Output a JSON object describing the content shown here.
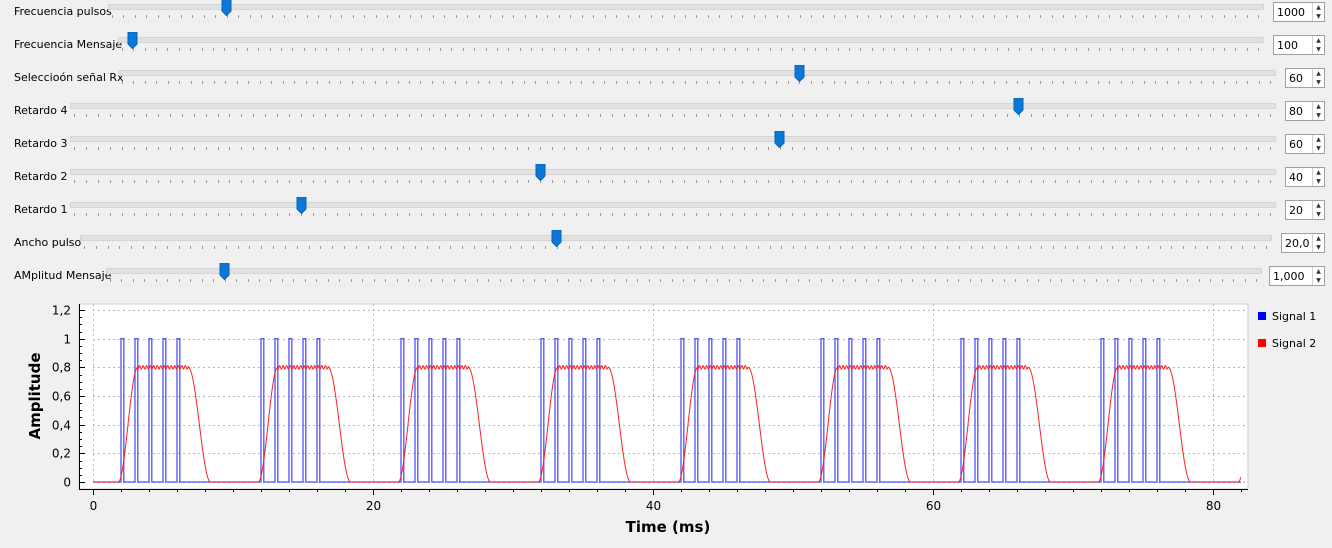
{
  "sliders": [
    {
      "label": "Frecuencia pulsos",
      "value": "1000",
      "fraction": 0.1
    },
    {
      "label": "Frecuencia Mensaje",
      "value": "100",
      "fraction": 0.009
    },
    {
      "label": "Seleccioón señal Rx",
      "value": "60",
      "fraction": 0.59
    },
    {
      "label": "Retardo 4",
      "value": "80",
      "fraction": 0.79
    },
    {
      "label": "Retardo 3",
      "value": "60",
      "fraction": 0.59
    },
    {
      "label": "Retardo 2",
      "value": "40",
      "fraction": 0.39
    },
    {
      "label": "Retardo 1",
      "value": "20",
      "fraction": 0.19
    },
    {
      "label": "Ancho pulso",
      "value": "20,0",
      "fraction": 0.4
    },
    {
      "label": "AMplitud Mensaje",
      "value": "1,000",
      "fraction": 0.1
    }
  ],
  "legend": [
    {
      "name": "Signal 1",
      "color": "#0000ff"
    },
    {
      "name": "Signal 2",
      "color": "#ff0000"
    }
  ],
  "chart_data": {
    "type": "line",
    "xlabel": "Time (ms)",
    "ylabel": "Amplitude",
    "xlim": [
      0,
      82
    ],
    "ylim": [
      0,
      1.2
    ],
    "xticks": [
      "0",
      "20",
      "40",
      "60",
      "80"
    ],
    "yticks": [
      "0",
      "0,2",
      "0,4",
      "0,6",
      "0,8",
      "1",
      "1,2"
    ],
    "grid": true,
    "legend_position": "right",
    "series": [
      {
        "name": "Signal 1",
        "color": "#5050ff",
        "description_values": {
          "period_ms": 10,
          "pulse_starts_offset_ms": [
            2,
            3,
            4,
            5,
            6
          ],
          "pulse_width_ms": 0.2,
          "high": 1,
          "low": 0,
          "periods": 8
        }
      },
      {
        "name": "Signal 2",
        "color": "#ff2020",
        "description_values": {
          "period_ms": 10,
          "rise_start_offset_ms": 1.8,
          "plateau_start_offset_ms": 3.2,
          "plateau_end_offset_ms": 6.8,
          "fall_end_offset_ms": 8.4,
          "high": 0.8,
          "low": 0,
          "periods": 8
        }
      }
    ]
  }
}
